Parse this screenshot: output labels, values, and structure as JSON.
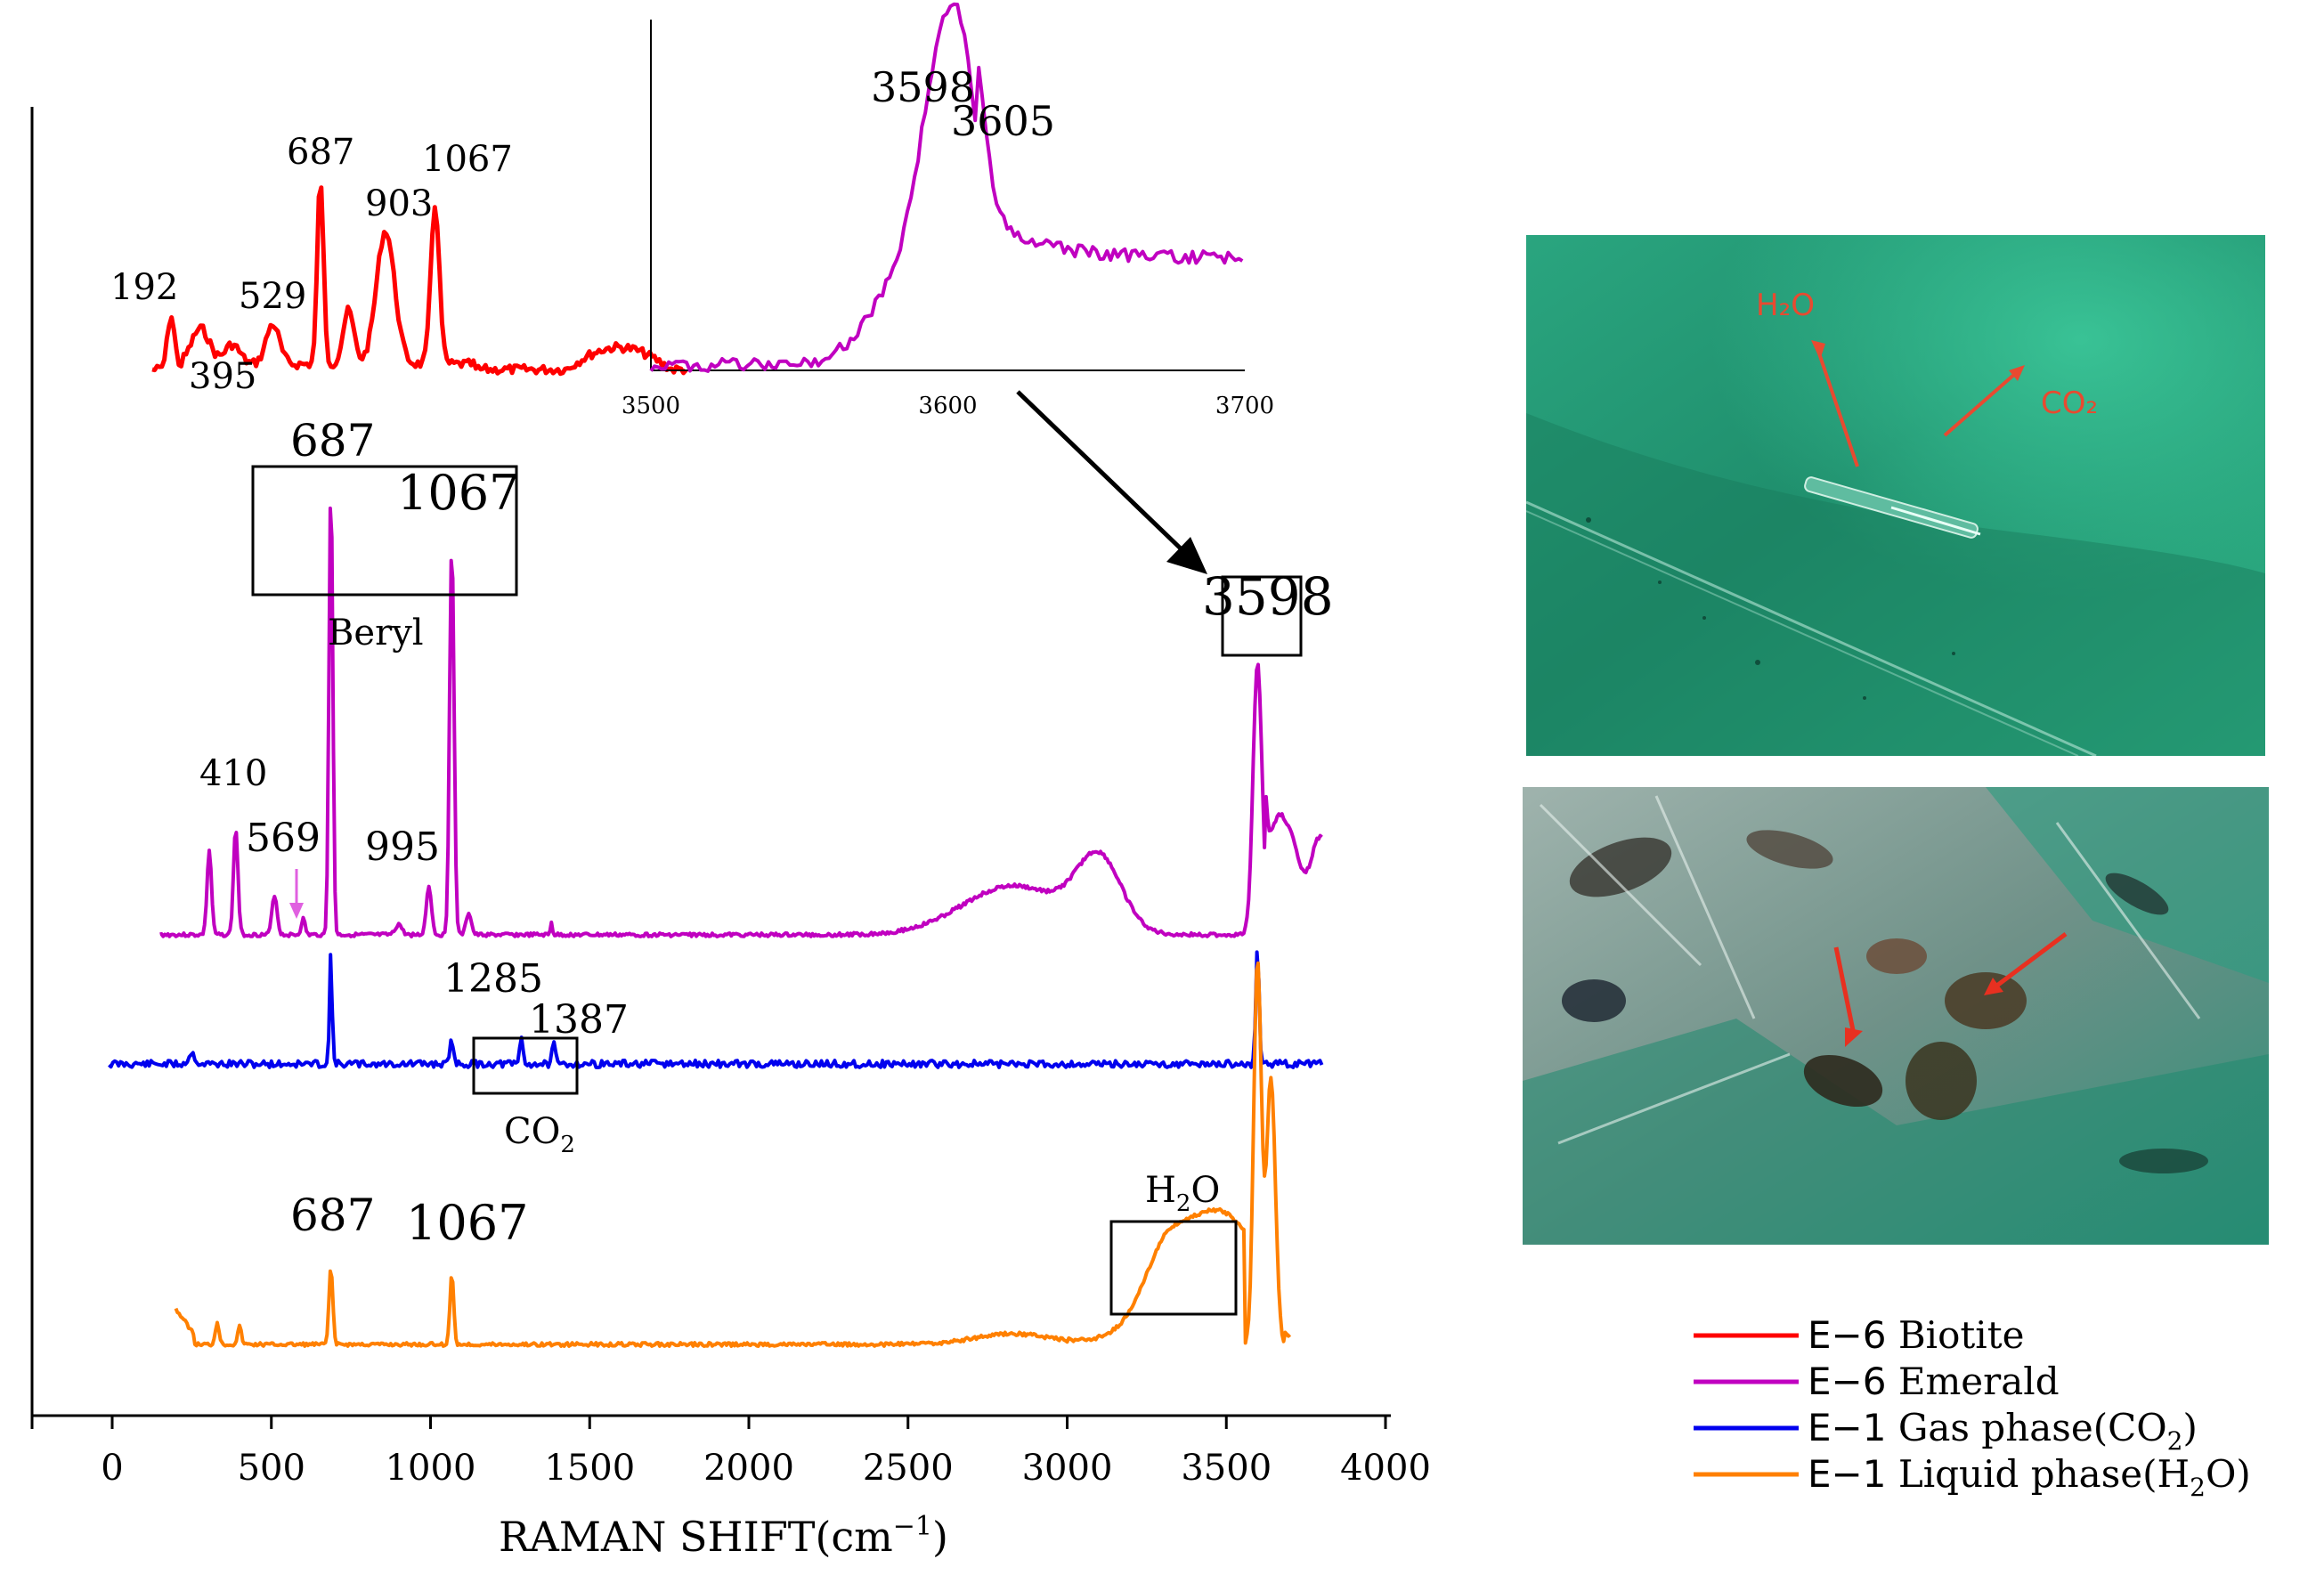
{
  "chart_data": {
    "type": "line",
    "title": "",
    "xlabel": "RAMAN SHIFT(cm",
    "xlabel_sup": "−1",
    "xlabel_close": ")",
    "ylabel": "",
    "xlim": [
      -250,
      4000
    ],
    "xticks": [
      0,
      500,
      1000,
      1500,
      2000,
      2500,
      3000,
      3500,
      4000
    ],
    "grid": false,
    "legend": "bottom-right",
    "series": [
      {
        "name": "E-6 Biotite",
        "color": "#ff0000",
        "peaks": [
          "192",
          "395",
          "529",
          "687",
          "903",
          "1067"
        ]
      },
      {
        "name": "E-6 Emerald",
        "color": "#c000c0",
        "peaks": [
          "410",
          "569",
          "687",
          "995",
          "1067",
          "3598"
        ]
      },
      {
        "name": "E-1 Gas phase(CO2)",
        "color": "#0000ee",
        "peaks": [
          "1285",
          "1387"
        ]
      },
      {
        "name": "E-1 Liquid phase(H2O)",
        "color": "#ff8000",
        "peaks": [
          "687",
          "1067"
        ]
      }
    ],
    "legend_entries": [
      {
        "prefix": "E−6",
        "text": "Biotite",
        "sub": "",
        "suffix": "",
        "color": "#ff0000"
      },
      {
        "prefix": "E−6",
        "text": "Emerald",
        "sub": "",
        "suffix": "",
        "color": "#c000c0"
      },
      {
        "prefix": "E−1",
        "text": " Gas phase(CO",
        "sub": "2",
        "suffix": ")",
        "color": "#0000ee"
      },
      {
        "prefix": "E−1",
        "text": "  Liquid phase(H",
        "sub": "2",
        "suffix": "O)",
        "color": "#ff8000"
      }
    ],
    "annotations": {
      "beryl": "Beryl",
      "co2": "CO",
      "co2_sub": "2",
      "h2o_h": "H",
      "h2o_sub": "2",
      "h2o_o": "O",
      "emerald_3598": "3598",
      "beryl_687": "687",
      "beryl_1067": "1067",
      "orange_687": "687",
      "orange_1067": "1067",
      "red_labels": [
        "192",
        "395",
        "529",
        "687",
        "903",
        "1067"
      ],
      "purple_labels": [
        "410",
        "569",
        "995"
      ],
      "blue_labels": [
        "1285",
        "1387"
      ]
    },
    "inset": {
      "xlim": [
        3500,
        3700
      ],
      "xticks": [
        3500,
        3600,
        3700
      ],
      "peaks": [
        "3598",
        "3605"
      ]
    }
  },
  "photos": {
    "photo1_labels": {
      "h2o": "H₂O",
      "co2": "CO₂"
    }
  }
}
